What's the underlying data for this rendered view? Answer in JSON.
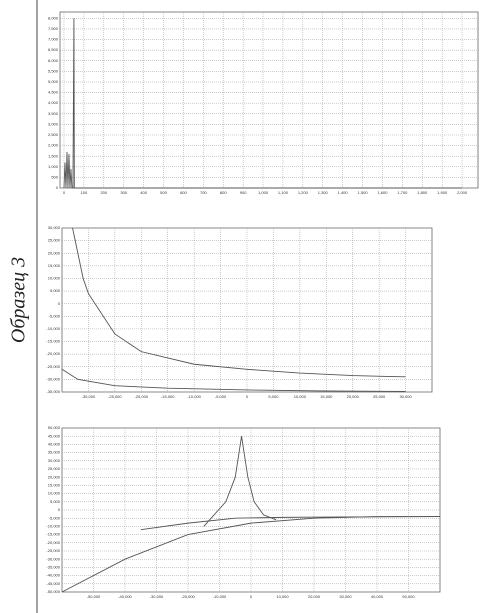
{
  "side_label": "Образец 3",
  "chart_data": [
    {
      "type": "line",
      "series": [
        {
          "color": "#555555",
          "x": [
            0,
            5,
            10,
            15,
            20,
            25,
            30,
            35,
            40,
            45,
            50,
            52,
            54,
            60,
            2000
          ],
          "y": [
            0,
            1200,
            0,
            1700,
            0,
            1600,
            0,
            900,
            0,
            0,
            8000,
            0,
            0,
            0,
            0
          ]
        }
      ],
      "xlim": [
        -20,
        2080
      ],
      "xticks": [
        0,
        100,
        200,
        300,
        400,
        500,
        600,
        700,
        800,
        900,
        {
          "value": 1000,
          "label": "1,000"
        },
        {
          "value": 1100,
          "label": "1,100"
        },
        {
          "value": 1200,
          "label": "1,200"
        },
        {
          "value": 1300,
          "label": "1,300"
        },
        {
          "value": 1400,
          "label": "1,400"
        },
        {
          "value": 1500,
          "label": "1,500"
        },
        {
          "value": 1600,
          "label": "1,600"
        },
        {
          "value": 1700,
          "label": "1,700"
        },
        {
          "value": 1800,
          "label": "1,800"
        },
        {
          "value": 1900,
          "label": "1,900"
        },
        {
          "value": 2000,
          "label": "2,000"
        }
      ],
      "ylim": [
        0,
        8300
      ],
      "yticks": [
        0,
        500,
        {
          "value": 1000,
          "label": "1,000"
        },
        {
          "value": 1500,
          "label": "1,500"
        },
        {
          "value": 2000,
          "label": "2,000"
        },
        {
          "value": 2500,
          "label": "2,500"
        },
        {
          "value": 3000,
          "label": "3,000"
        },
        {
          "value": 3500,
          "label": "3,500"
        },
        {
          "value": 4000,
          "label": "4,000"
        },
        {
          "value": 4500,
          "label": "4,500"
        },
        {
          "value": 5000,
          "label": "5,000"
        },
        {
          "value": 5500,
          "label": "5,500"
        },
        {
          "value": 6000,
          "label": "6,000"
        },
        {
          "value": 6500,
          "label": "6,500"
        },
        {
          "value": 7000,
          "label": "7,000"
        },
        {
          "value": 7500,
          "label": "7,500"
        },
        {
          "value": 8000,
          "label": "8,000"
        }
      ],
      "grid": true
    },
    {
      "type": "line",
      "series": [
        {
          "color": "#555555",
          "x": [
            -33000,
            -32000,
            -31000,
            -30000,
            -25000,
            -20000,
            -10000,
            0,
            10000,
            20000,
            30000
          ],
          "y": [
            30000,
            20000,
            10000,
            4000,
            -12000,
            -19000,
            -24000,
            -26000,
            -27500,
            -28500,
            -29000
          ]
        },
        {
          "color": "#555555",
          "x": [
            -35000,
            -32000,
            -25000,
            -15000,
            0,
            15000,
            30000
          ],
          "y": [
            -26000,
            -30000,
            -32500,
            -33500,
            -34200,
            -34600,
            -34800
          ]
        }
      ],
      "xlim": [
        -35000,
        35000
      ],
      "xticks": [
        {
          "value": -30000,
          "label": "-30,000"
        },
        {
          "value": -25000,
          "label": "-25,000"
        },
        {
          "value": -20000,
          "label": "-20,000"
        },
        {
          "value": -15000,
          "label": "-15,000"
        },
        {
          "value": -10000,
          "label": "-10,000"
        },
        {
          "value": -5000,
          "label": "-5,000"
        },
        0,
        {
          "value": 5000,
          "label": "5,000"
        },
        {
          "value": 10000,
          "label": "10,000"
        },
        {
          "value": 15000,
          "label": "15,000"
        },
        {
          "value": 20000,
          "label": "20,000"
        },
        {
          "value": 25000,
          "label": "25,000"
        },
        {
          "value": 30000,
          "label": "30,000"
        }
      ],
      "ylim": [
        -35000,
        30000
      ],
      "yticks": [
        {
          "value": -35000,
          "label": "-35,000"
        },
        {
          "value": -30000,
          "label": "-30,000"
        },
        {
          "value": -25000,
          "label": "-25,000"
        },
        {
          "value": -20000,
          "label": "-20,000"
        },
        {
          "value": -15000,
          "label": "-15,000"
        },
        {
          "value": -10000,
          "label": "-10,000"
        },
        {
          "value": -5000,
          "label": "-5,000"
        },
        0,
        {
          "value": 5000,
          "label": "5,000"
        },
        {
          "value": 10000,
          "label": "10,000"
        },
        {
          "value": 15000,
          "label": "15,000"
        },
        {
          "value": 20000,
          "label": "20,000"
        },
        {
          "value": 25000,
          "label": "25,000"
        },
        {
          "value": 30000,
          "label": "30,000"
        }
      ],
      "grid": true
    },
    {
      "type": "line",
      "series": [
        {
          "color": "#555555",
          "x": [
            -15000,
            -8000,
            -5000,
            -3000,
            -1000,
            1000,
            4000,
            8000
          ],
          "y": [
            -10000,
            5000,
            20000,
            45000,
            20000,
            5000,
            -3000,
            -6000
          ]
        },
        {
          "color": "#555555",
          "x": [
            -60000,
            -40000,
            -20000,
            0,
            20000,
            40000,
            60000
          ],
          "y": [
            -50000,
            -30000,
            -15000,
            -8000,
            -5000,
            -4000,
            -4000
          ]
        },
        {
          "color": "#555555",
          "x": [
            -35000,
            -20000,
            -5000,
            10000,
            30000,
            60000
          ],
          "y": [
            -12000,
            -8000,
            -5000,
            -4500,
            -4200,
            -4000
          ]
        }
      ],
      "xlim": [
        -60000,
        60000
      ],
      "xticks": [
        {
          "value": -50000,
          "label": "-50,000"
        },
        {
          "value": -40000,
          "label": "-40,000"
        },
        {
          "value": -30000,
          "label": "-30,000"
        },
        {
          "value": -20000,
          "label": "-20,000"
        },
        {
          "value": -10000,
          "label": "-10,000"
        },
        0,
        {
          "value": 10000,
          "label": "10,000"
        },
        {
          "value": 20000,
          "label": "20,000"
        },
        {
          "value": 30000,
          "label": "30,000"
        },
        {
          "value": 40000,
          "label": "40,000"
        },
        {
          "value": 50000,
          "label": "50,000"
        }
      ],
      "ylim": [
        -50000,
        50000
      ],
      "yticks": [
        {
          "value": -50000,
          "label": "-50,000"
        },
        {
          "value": -45000,
          "label": "-45,000"
        },
        {
          "value": -40000,
          "label": "-40,000"
        },
        {
          "value": -35000,
          "label": "-35,000"
        },
        {
          "value": -30000,
          "label": "-30,000"
        },
        {
          "value": -25000,
          "label": "-25,000"
        },
        {
          "value": -20000,
          "label": "-20,000"
        },
        {
          "value": -15000,
          "label": "-15,000"
        },
        {
          "value": -10000,
          "label": "-10,000"
        },
        {
          "value": -5000,
          "label": "-5,000"
        },
        0,
        {
          "value": 5000,
          "label": "5,000"
        },
        {
          "value": 10000,
          "label": "10,000"
        },
        {
          "value": 15000,
          "label": "15,000"
        },
        {
          "value": 20000,
          "label": "20,000"
        },
        {
          "value": 25000,
          "label": "25,000"
        },
        {
          "value": 30000,
          "label": "30,000"
        },
        {
          "value": 35000,
          "label": "35,000"
        },
        {
          "value": 40000,
          "label": "40,000"
        },
        {
          "value": 45000,
          "label": "45,000"
        },
        {
          "value": 50000,
          "label": "50,000"
        }
      ],
      "grid": true
    }
  ]
}
